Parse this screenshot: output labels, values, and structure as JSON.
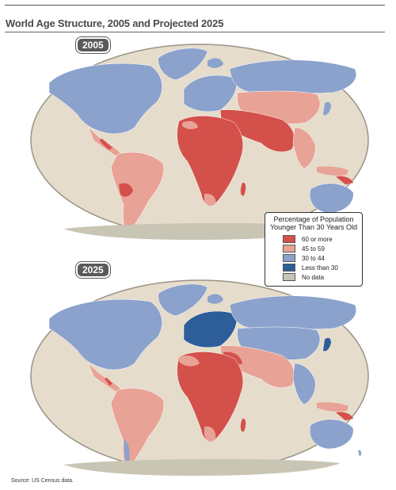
{
  "title": "World Age Structure, 2005 and Projected 2025",
  "maps": [
    {
      "year": "2005"
    },
    {
      "year": "2025"
    }
  ],
  "legend": {
    "title_line1": "Percentage of Population",
    "title_line2": "Younger Than 30 Years Old",
    "items": [
      {
        "label": "60 or more",
        "color": "#d4504a"
      },
      {
        "label": "45 to 59",
        "color": "#e9a296"
      },
      {
        "label": "30 to 44",
        "color": "#8ba2cd"
      },
      {
        "label": "Less than 30",
        "color": "#2d5e9a"
      },
      {
        "label": "No data",
        "color": "#c9c5b5"
      }
    ]
  },
  "colors": {
    "ocean": "#e6dccb",
    "ocean_edge": "#9a9387",
    "land_gray": "#c9c5b5"
  },
  "source": "Source: US Census data."
}
